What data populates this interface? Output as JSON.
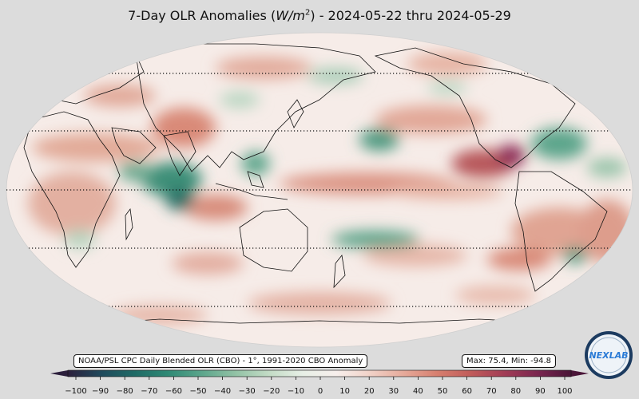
{
  "title": {
    "prefix": "7-Day OLR Anomalies (",
    "unit_base": "W/m",
    "unit_exp": "2",
    "suffix": ") - 2024-05-22 thru 2024-05-29"
  },
  "source_label": "NOAA/PSL CPC Daily Blended OLR (CBO) - 1°, 1991-2020 CBO Anomaly",
  "stats_label": "Max: 75.4,  Min: -94.8",
  "logo_text": "NEXLAB",
  "colorbar": {
    "ticks": [
      "−100",
      "−90",
      "−80",
      "−70",
      "−60",
      "−50",
      "−40",
      "−30",
      "−20",
      "−10",
      "0",
      "10",
      "20",
      "30",
      "40",
      "50",
      "60",
      "70",
      "80",
      "90",
      "100"
    ],
    "colors_low_to_high": [
      "#2c1f3c",
      "#1f4a5c",
      "#1f6b66",
      "#2f8a75",
      "#5da68c",
      "#92c2a5",
      "#c3dcc6",
      "#e7efe6",
      "#f7efec",
      "#f1d2c8",
      "#e6aa9a",
      "#d77f6f",
      "#c15c5a",
      "#a23d56",
      "#7a2650",
      "#4a1538"
    ]
  },
  "map": {
    "projection": "Robinson",
    "central_longitude": 180,
    "dotted_parallels": [
      "60N",
      "30N",
      "0",
      "30S",
      "60S"
    ]
  }
}
